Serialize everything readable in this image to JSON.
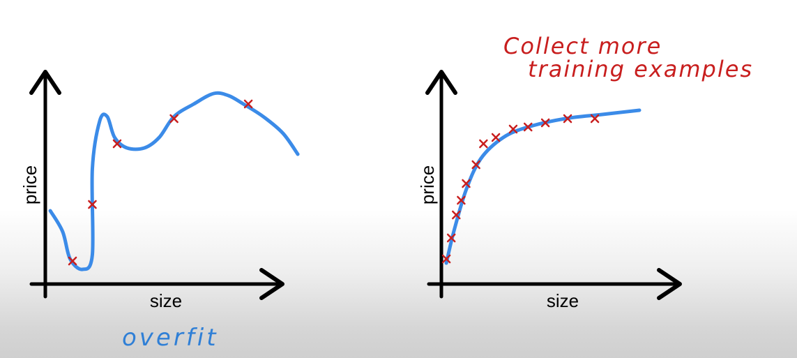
{
  "chart_data": [
    {
      "type": "scatter",
      "xlabel": "size",
      "ylabel": "price",
      "annotation": "overfit",
      "points": [
        {
          "x": 0.11,
          "y": 0.11
        },
        {
          "x": 0.19,
          "y": 0.38
        },
        {
          "x": 0.29,
          "y": 0.67
        },
        {
          "x": 0.52,
          "y": 0.79
        },
        {
          "x": 0.82,
          "y": 0.86
        }
      ],
      "fit_curve": [
        [
          0.02,
          0.35
        ],
        [
          0.07,
          0.25
        ],
        [
          0.1,
          0.12
        ],
        [
          0.15,
          0.07
        ],
        [
          0.19,
          0.14
        ],
        [
          0.19,
          0.55
        ],
        [
          0.22,
          0.78
        ],
        [
          0.25,
          0.8
        ],
        [
          0.28,
          0.7
        ],
        [
          0.33,
          0.65
        ],
        [
          0.4,
          0.65
        ],
        [
          0.46,
          0.7
        ],
        [
          0.52,
          0.8
        ],
        [
          0.6,
          0.86
        ],
        [
          0.68,
          0.91
        ],
        [
          0.74,
          0.9
        ],
        [
          0.8,
          0.86
        ],
        [
          0.88,
          0.8
        ],
        [
          0.96,
          0.72
        ],
        [
          1.02,
          0.62
        ]
      ]
    },
    {
      "type": "scatter",
      "xlabel": "size",
      "ylabel": "price",
      "annotation_lines": [
        "Collect more",
        "training examples"
      ],
      "points": [
        {
          "x": 0.02,
          "y": 0.12
        },
        {
          "x": 0.04,
          "y": 0.22
        },
        {
          "x": 0.06,
          "y": 0.33
        },
        {
          "x": 0.08,
          "y": 0.4
        },
        {
          "x": 0.1,
          "y": 0.48
        },
        {
          "x": 0.14,
          "y": 0.57
        },
        {
          "x": 0.17,
          "y": 0.67
        },
        {
          "x": 0.22,
          "y": 0.7
        },
        {
          "x": 0.29,
          "y": 0.74
        },
        {
          "x": 0.35,
          "y": 0.75
        },
        {
          "x": 0.42,
          "y": 0.77
        },
        {
          "x": 0.51,
          "y": 0.79
        },
        {
          "x": 0.62,
          "y": 0.79
        }
      ],
      "fit_curve": [
        [
          0.02,
          0.1
        ],
        [
          0.05,
          0.25
        ],
        [
          0.1,
          0.45
        ],
        [
          0.16,
          0.6
        ],
        [
          0.25,
          0.7
        ],
        [
          0.35,
          0.75
        ],
        [
          0.5,
          0.79
        ],
        [
          0.65,
          0.81
        ],
        [
          0.8,
          0.83
        ]
      ]
    }
  ]
}
